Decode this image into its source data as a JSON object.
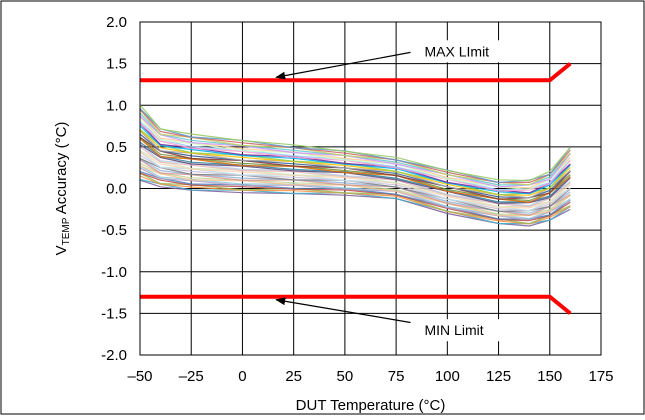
{
  "chart_data": {
    "type": "line",
    "title": "",
    "xlabel": "DUT Temperature (°C)",
    "ylabel_main": "V",
    "ylabel_sub": "TEMP",
    "ylabel_rest": " Accuracy (°C)",
    "xlim": [
      -50,
      175
    ],
    "ylim": [
      -2.0,
      2.0
    ],
    "x_ticks": [
      -50,
      -25,
      0,
      25,
      50,
      75,
      100,
      125,
      150,
      175
    ],
    "x_tick_labels": [
      "–50",
      "–25",
      "0",
      "25",
      "50",
      "75",
      "100",
      "125",
      "150",
      "175"
    ],
    "y_ticks": [
      2.0,
      1.5,
      1.0,
      0.5,
      0.0,
      -0.5,
      -1.0,
      -1.5,
      -2.0
    ],
    "y_tick_labels": [
      "2.0",
      "1.5",
      "1.0",
      "0.5",
      "0.0",
      "-0.5",
      "-1.0",
      "-1.5",
      "-2.0"
    ],
    "grid": true,
    "legend": "none",
    "limit_color": "#ff0000",
    "limits": [
      {
        "label": "MAX LImit",
        "x": [
          -50,
          150,
          160
        ],
        "y": [
          1.3,
          1.3,
          1.5
        ]
      },
      {
        "label": "MIN Limit",
        "x": [
          -50,
          150,
          160
        ],
        "y": [
          -1.3,
          -1.3,
          -1.5
        ]
      }
    ],
    "annotations": [
      {
        "text": "MAX LImit",
        "points_to": [
          15,
          1.3
        ],
        "text_at": [
          83,
          1.6
        ]
      },
      {
        "text": "MIN Limit",
        "points_to": [
          15,
          -1.3
        ],
        "text_at": [
          83,
          -1.75
        ]
      }
    ],
    "device_curves": {
      "x": [
        -50,
        -40,
        -25,
        0,
        25,
        50,
        75,
        100,
        125,
        140,
        150,
        160
      ],
      "upper_envelope": [
        1.0,
        0.72,
        0.65,
        0.58,
        0.52,
        0.45,
        0.37,
        0.22,
        0.1,
        0.1,
        0.2,
        0.5
      ],
      "lower_envelope": [
        0.1,
        0.02,
        -0.02,
        -0.05,
        -0.06,
        -0.08,
        -0.12,
        -0.3,
        -0.42,
        -0.45,
        -0.38,
        -0.25
      ],
      "count": 40,
      "colors": [
        "#8064a2",
        "#4bacc6",
        "#f79646",
        "#9bbb59",
        "#c0504d",
        "#4f81bd",
        "#b3a2c7",
        "#93cddd",
        "#fac090",
        "#c3d69b",
        "#d99694",
        "#95b3d7",
        "#7f7f7f",
        "#ccc1da",
        "#b7dee8",
        "#fcd5b5",
        "#d7e4bd",
        "#e6b9b8",
        "#b9cde5",
        "#604a7b",
        "#31859c",
        "#e46c0a",
        "#77933c",
        "#953735",
        "#376092",
        "#a6a6a6",
        "#ffc000",
        "#92d050",
        "#00b0f0",
        "#7030a0",
        "#ff99cc",
        "#99ccff",
        "#ccffcc",
        "#ffcc99",
        "#cc99ff",
        "#66cccc",
        "#cccc66",
        "#cc6666",
        "#6699cc",
        "#99cc66"
      ]
    }
  }
}
